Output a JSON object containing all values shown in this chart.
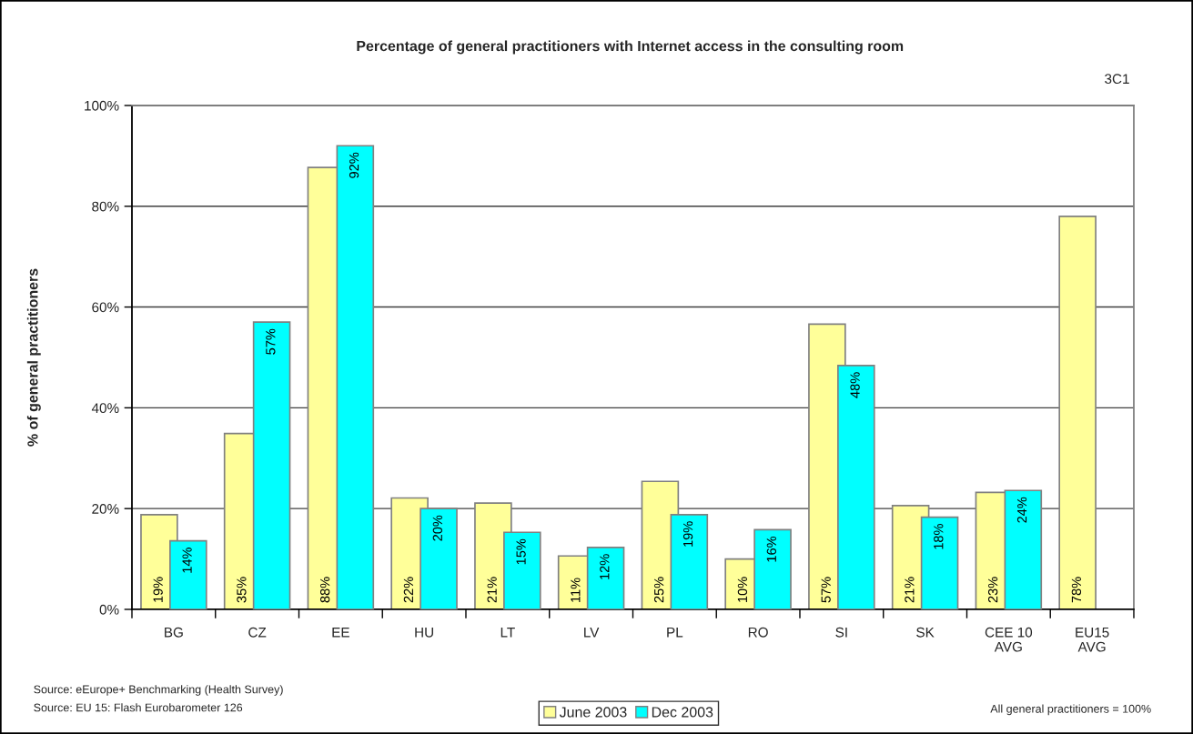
{
  "chart_data": {
    "type": "bar",
    "title": "Percentage of general practitioners with Internet access in the consulting room",
    "ylabel": "% of general practitioners",
    "categories": [
      "BG",
      "CZ",
      "EE",
      "HU",
      "LT",
      "LV",
      "PL",
      "RO",
      "SI",
      "SK",
      "CEE 10\nAVG",
      "EU15\nAVG"
    ],
    "series": [
      {
        "name": "June 2003",
        "color": "#ffff99",
        "values": [
          18.8,
          34.9,
          87.7,
          22.1,
          21.1,
          10.6,
          25.4,
          10.0,
          56.6,
          20.6,
          23.2,
          78.0
        ],
        "value_labels": [
          "19%",
          "35%",
          "88%",
          "22%",
          "21%",
          "11%",
          "25%",
          "10%",
          "57%",
          "21%",
          "23%",
          "78%"
        ]
      },
      {
        "name": "Dec 2003",
        "color": "#00ffff",
        "values": [
          13.6,
          57.0,
          92.0,
          20.0,
          15.3,
          12.3,
          18.8,
          15.8,
          48.4,
          18.3,
          23.6,
          null
        ],
        "value_labels": [
          "14%",
          "57%",
          "92%",
          "20%",
          "15%",
          "12%",
          "19%",
          "16%",
          "48%",
          "18%",
          "24%",
          null
        ]
      }
    ],
    "ylim": [
      0,
      100
    ],
    "yticks": [
      {
        "value": 0,
        "label": "0%"
      },
      {
        "value": 20,
        "label": "20%"
      },
      {
        "value": 40,
        "label": "40%"
      },
      {
        "value": 60,
        "label": "60%"
      },
      {
        "value": 80,
        "label": "80%"
      },
      {
        "value": 100,
        "label": "100%"
      }
    ],
    "grid": "y",
    "legend": "bottom",
    "annotations": [
      "3C1",
      "Source: eEurope+ Benchmarking (Health Survey)",
      "Source: EU 15: Flash Eurobarometer 126",
      "All general practitioners = 100%"
    ]
  }
}
